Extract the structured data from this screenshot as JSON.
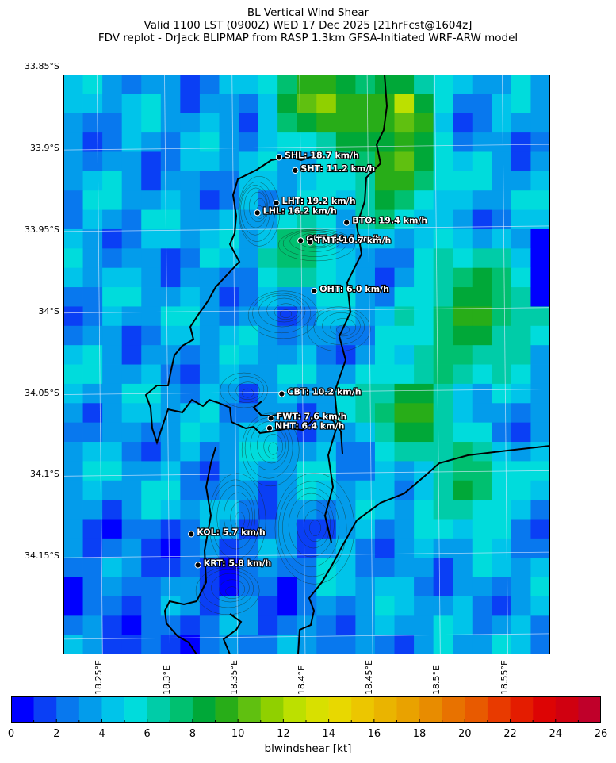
{
  "title": {
    "line1": "BL Vertical Wind Shear",
    "line2": "Valid 1100 LST (0900Z) WED 17 Dec 2025 [21hrFcst@1604z]",
    "line3": "FDV replot - DrJack BLIPMAP from RASP 1.3km GFSA-Initiated WRF-ARW model"
  },
  "map": {
    "lat_labels": [
      "33.85°S",
      "33.9°S",
      "33.95°S",
      "34°S",
      "34.05°S",
      "34.1°S",
      "34.15°S"
    ],
    "lon_labels": [
      "18.25°E",
      "18.3°E",
      "18.35°E",
      "18.4°E",
      "18.45°E",
      "18.5°E",
      "18.55°E"
    ],
    "stations": [
      {
        "code": "SHL",
        "text": "SHL: 18.7 km/h",
        "lat": -33.906,
        "lon": 18.383
      },
      {
        "code": "SHT",
        "text": "SHT: 11.2 km/h",
        "lat": -33.914,
        "lon": 18.395
      },
      {
        "code": "LHT",
        "text": "LHT: 19.2 km/h",
        "lat": -33.934,
        "lon": 18.381
      },
      {
        "code": "LHL",
        "text": "LHL: 16.2 km/h",
        "lat": -33.94,
        "lon": 18.367
      },
      {
        "code": "BTO",
        "text": "BTO: 19.4 km/h",
        "lat": -33.946,
        "lon": 18.433
      },
      {
        "code": "GUT",
        "text": "GUT: 10.4 km/h",
        "lat": -33.957,
        "lon": 18.399
      },
      {
        "code": "TMT",
        "text": "TMT: 10.7 km/h",
        "lat": -33.958,
        "lon": 18.406
      },
      {
        "code": "OHT",
        "text": "OHT: 6.0 km/h",
        "lat": -33.988,
        "lon": 18.409
      },
      {
        "code": "CBT",
        "text": "CBT: 10.2 km/h",
        "lat": -34.051,
        "lon": 18.385
      },
      {
        "code": "FWT",
        "text": "FWT: 7.6 km/h",
        "lat": -34.066,
        "lon": 18.377
      },
      {
        "code": "NHT",
        "text": "NHT: 6.4 km/h",
        "lat": -34.072,
        "lon": 18.376
      },
      {
        "code": "KOL",
        "text": "KOL: 5.7 km/h",
        "lat": -34.137,
        "lon": 18.318
      },
      {
        "code": "KRT",
        "text": "KRT: 5.8 km/h",
        "lat": -34.156,
        "lon": 18.323
      }
    ]
  },
  "colorbar": {
    "label": "blwindshear [kt]",
    "ticks": [
      "0",
      "2",
      "4",
      "6",
      "8",
      "10",
      "12",
      "14",
      "16",
      "18",
      "20",
      "22",
      "24",
      "26"
    ],
    "min": 0,
    "max": 26,
    "colors": [
      "#0000ff",
      "#0a3ff5",
      "#0878ee",
      "#039ceb",
      "#00c4ea",
      "#00dcdc",
      "#00cca8",
      "#00c070",
      "#00a838",
      "#28ad18",
      "#60c010",
      "#90d000",
      "#bce000",
      "#d8e000",
      "#e8d800",
      "#ecc600",
      "#eab400",
      "#e9a200",
      "#e88c00",
      "#e87200",
      "#e85a00",
      "#e83a00",
      "#e41c00",
      "#dd0404",
      "#d00010",
      "#c0002a"
    ]
  }
}
